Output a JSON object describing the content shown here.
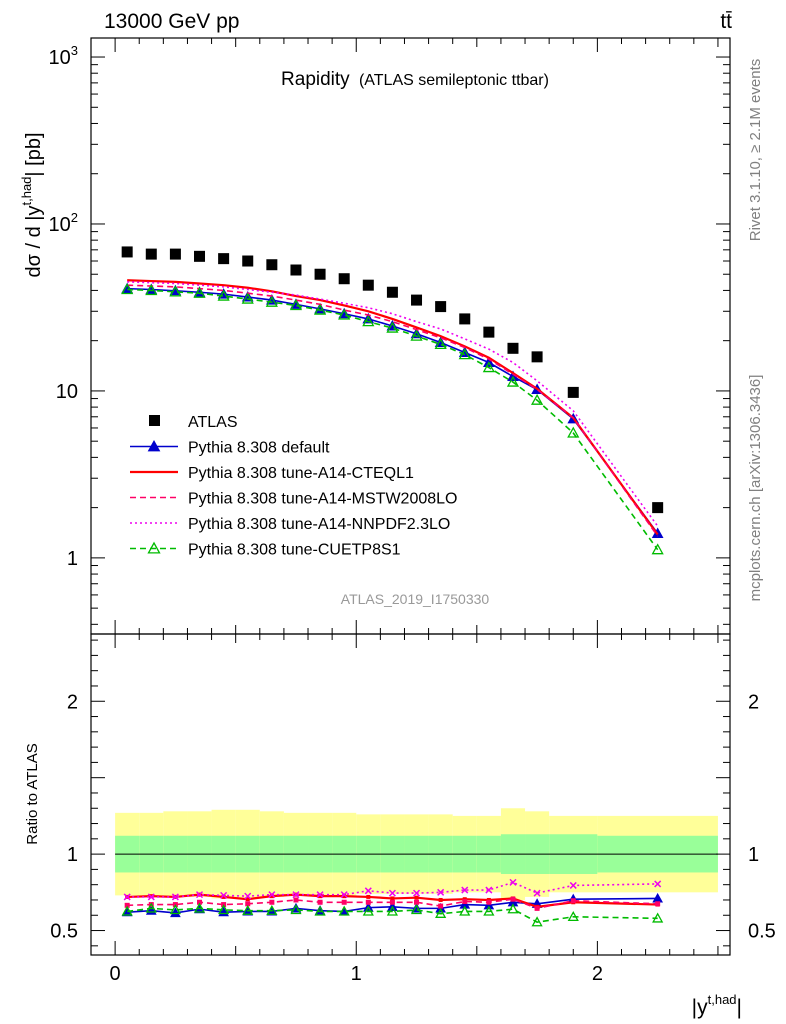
{
  "header": {
    "left": "13000 GeV pp",
    "right": "tt̄"
  },
  "side_labels": {
    "rivet": "Rivet 3.1.10, ≥ 2.1M events",
    "mcplots": "mcplots.cern.ch [arXiv:1306.3436]"
  },
  "chart_data": {
    "type": "line",
    "title": "Rapidity",
    "subtitle": "(ATLAS semileptonic ttbar)",
    "analysis_label": "ATLAS_2019_I1750330",
    "xlabel": "|y",
    "xlabel_sup": "t,had",
    "xlabel_tail": "|",
    "ylabel": "dσ / d |y",
    "ylabel_sup": "t,had",
    "ylabel_tail": "| [pb]",
    "ratio_ylabel": "Ratio to ATLAS",
    "xlim": [
      -0.1,
      2.55
    ],
    "ylim": [
      0.35,
      1300
    ],
    "ratio_ylim": [
      0.34,
      2.44
    ],
    "yscale": "log",
    "legend_position": "lower-left",
    "x_ticks": [
      {
        "value": 0,
        "label": "0"
      },
      {
        "value": 1,
        "label": "1"
      },
      {
        "value": 2,
        "label": "2"
      }
    ],
    "y_ticks": [
      {
        "value": 1,
        "label": "1"
      },
      {
        "value": 10,
        "label": "10"
      },
      {
        "value": 100,
        "label": "10",
        "sup": "2"
      },
      {
        "value": 1000,
        "label": "10",
        "sup": "3"
      }
    ],
    "ratio_ticks": [
      {
        "value": 0.5,
        "label": "0.5"
      },
      {
        "value": 1,
        "label": "1"
      },
      {
        "value": 2,
        "label": "2"
      }
    ],
    "x_bins": [
      [
        0.0,
        0.1
      ],
      [
        0.1,
        0.2
      ],
      [
        0.2,
        0.3
      ],
      [
        0.3,
        0.4
      ],
      [
        0.4,
        0.5
      ],
      [
        0.5,
        0.6
      ],
      [
        0.6,
        0.7
      ],
      [
        0.7,
        0.8
      ],
      [
        0.8,
        0.9
      ],
      [
        0.9,
        1.0
      ],
      [
        1.0,
        1.1
      ],
      [
        1.1,
        1.2
      ],
      [
        1.2,
        1.3
      ],
      [
        1.3,
        1.4
      ],
      [
        1.4,
        1.5
      ],
      [
        1.5,
        1.6
      ],
      [
        1.6,
        1.7
      ],
      [
        1.7,
        1.8
      ],
      [
        1.8,
        2.0
      ],
      [
        2.0,
        2.5
      ]
    ],
    "x": [
      0.05,
      0.15,
      0.25,
      0.35,
      0.45,
      0.55,
      0.65,
      0.75,
      0.85,
      0.95,
      1.05,
      1.15,
      1.25,
      1.35,
      1.45,
      1.55,
      1.65,
      1.75,
      1.9,
      2.25
    ],
    "data": {
      "name": "ATLAS",
      "values": [
        68,
        66,
        66,
        64,
        62,
        60,
        57,
        53,
        50,
        47,
        43,
        39,
        35,
        32,
        27,
        22.5,
        18,
        16,
        9.8,
        2.0
      ],
      "band_stat": [
        0.12,
        0.12,
        0.12,
        0.12,
        0.12,
        0.12,
        0.12,
        0.12,
        0.12,
        0.12,
        0.12,
        0.12,
        0.12,
        0.12,
        0.12,
        0.12,
        0.13,
        0.13,
        0.13,
        0.12
      ],
      "band_total": [
        0.27,
        0.27,
        0.28,
        0.28,
        0.29,
        0.29,
        0.28,
        0.27,
        0.27,
        0.27,
        0.26,
        0.26,
        0.26,
        0.26,
        0.25,
        0.25,
        0.3,
        0.28,
        0.25,
        0.25
      ]
    },
    "series": [
      {
        "name": "Pythia 8.308 default",
        "color": "#0000cc",
        "style": "solid-triangle",
        "values": [
          41,
          40.5,
          39.8,
          39,
          38,
          36.5,
          35,
          33,
          31,
          29,
          27,
          24.5,
          22,
          19.5,
          17,
          14.8,
          12.2,
          10.2,
          6.8,
          1.4
        ],
        "ratio": [
          0.62,
          0.63,
          0.615,
          0.64,
          0.62,
          0.625,
          0.625,
          0.645,
          0.63,
          0.625,
          0.65,
          0.655,
          0.645,
          0.645,
          0.67,
          0.665,
          0.685,
          0.675,
          0.705,
          0.71
        ]
      },
      {
        "name": "Pythia 8.308 tune-A14-CTEQL1",
        "color": "#ff0000",
        "style": "solid",
        "values": [
          46,
          45.5,
          45,
          44,
          43,
          41.5,
          39.5,
          37,
          35,
          32.5,
          30,
          27,
          24,
          21.3,
          18.5,
          15.8,
          12.8,
          10.3,
          6.9,
          1.38
        ],
        "ratio": [
          0.72,
          0.725,
          0.72,
          0.735,
          0.72,
          0.705,
          0.725,
          0.735,
          0.725,
          0.725,
          0.72,
          0.71,
          0.715,
          0.7,
          0.705,
          0.7,
          0.71,
          0.655,
          0.685,
          0.67
        ]
      },
      {
        "name": "Pythia 8.308 tune-A14-MSTW2008LO",
        "color": "#ff0066",
        "style": "dashed",
        "values": [
          43,
          42.5,
          42,
          41,
          40,
          38.5,
          37,
          35,
          33,
          30.5,
          28.5,
          26,
          23.3,
          20.8,
          18.2,
          15.5,
          12.6,
          10.2,
          6.9,
          1.35
        ],
        "ratio": [
          0.665,
          0.67,
          0.67,
          0.685,
          0.67,
          0.675,
          0.685,
          0.7,
          0.685,
          0.685,
          0.685,
          0.685,
          0.685,
          0.66,
          0.69,
          0.685,
          0.705,
          0.645,
          0.695,
          0.675
        ]
      },
      {
        "name": "Pythia 8.308 tune-A14-NNPDF2.3LO",
        "color": "#ee00ee",
        "style": "dotted",
        "values": [
          45,
          44.5,
          44,
          43,
          42,
          40.5,
          39,
          37.5,
          35.5,
          33.5,
          31.5,
          29,
          26,
          23.5,
          20.5,
          17.8,
          14.8,
          11.5,
          7.6,
          1.55
        ],
        "ratio": [
          0.72,
          0.72,
          0.72,
          0.735,
          0.73,
          0.725,
          0.735,
          0.735,
          0.735,
          0.735,
          0.76,
          0.745,
          0.745,
          0.75,
          0.765,
          0.765,
          0.815,
          0.745,
          0.795,
          0.805
        ]
      },
      {
        "name": "Pythia 8.308 tune-CUETP8S1",
        "color": "#00bb00",
        "style": "dashed-open-triangle",
        "values": [
          40.5,
          40,
          39.2,
          38.5,
          37,
          35.5,
          34,
          32.5,
          30.5,
          28.5,
          26,
          23.8,
          21.3,
          19,
          16.5,
          13.8,
          11.3,
          8.8,
          5.6,
          1.12
        ],
        "ratio": [
          0.625,
          0.645,
          0.635,
          0.645,
          0.635,
          0.63,
          0.63,
          0.635,
          0.625,
          0.625,
          0.625,
          0.625,
          0.635,
          0.61,
          0.625,
          0.625,
          0.64,
          0.555,
          0.59,
          0.58
        ]
      }
    ]
  }
}
